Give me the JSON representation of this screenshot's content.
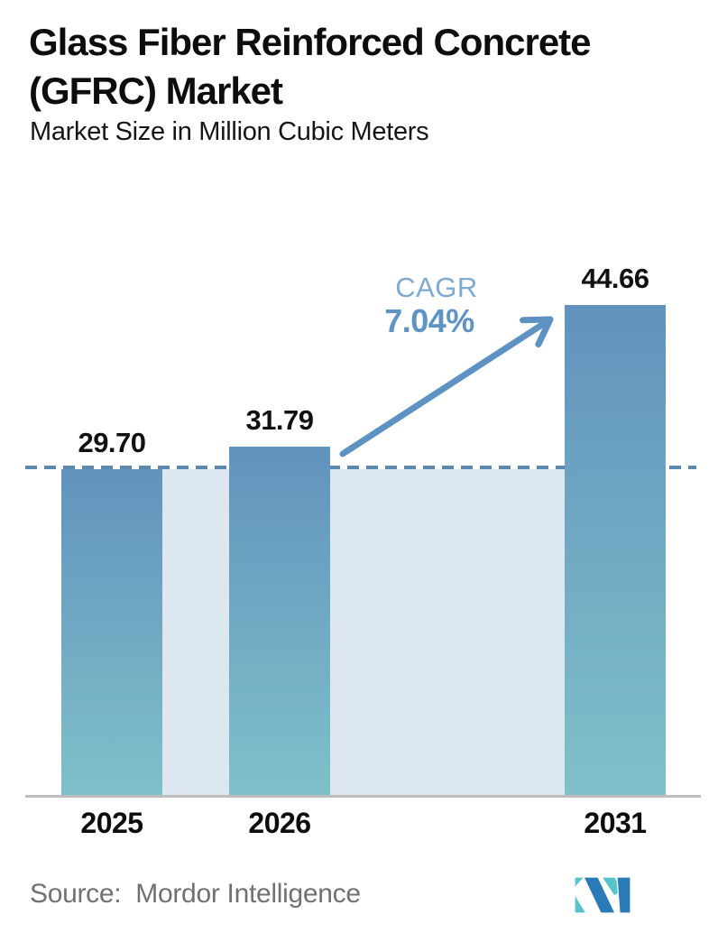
{
  "chart_data": {
    "type": "bar",
    "title": "Glass Fiber Reinforced Concrete (GFRC) Market",
    "subtitle": "Market Size in Million Cubic Meters",
    "unit": "Million Cubic Meters",
    "categories": [
      "2025",
      "2026",
      "2031"
    ],
    "values": [
      29.7,
      31.79,
      44.66
    ],
    "value_labels": [
      "29.70",
      "31.79",
      "44.66"
    ],
    "ylim": [
      0,
      47
    ],
    "grid": false,
    "legend": "none",
    "annotation": {
      "label": "CAGR",
      "value": "7.04%"
    },
    "reference_line": {
      "value": 29.7,
      "style": "dashed"
    },
    "colors": {
      "bar_top": "#6193bd",
      "bar_bottom": "#80c0c9",
      "band": "#dce7ef",
      "dash": "#5c88b0",
      "axis": "#bdbdbd",
      "arrow": "#5e92c2",
      "cagr_label": "#7ea9d0",
      "cagr_value": "#5e93c4"
    }
  },
  "footer": {
    "source_label": "Source:",
    "source_name": "Mordor Intelligence",
    "logo": {
      "name": "mordor-intelligence-logo",
      "teal": "#57c4cd",
      "blue": "#2b7ab8"
    }
  }
}
